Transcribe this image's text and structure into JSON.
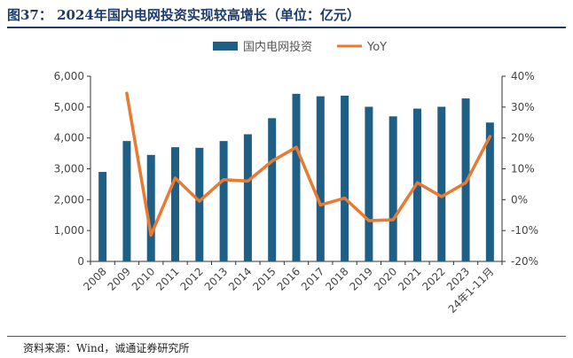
{
  "title": "图37：  2024年国内电网投资实现较高增长（单位：亿元）",
  "source": "资料来源：Wind，诚通证券研究所",
  "colors": {
    "bar": "#1f5f86",
    "line": "#e97a33",
    "title": "#1f3b6b"
  },
  "chart_data": {
    "type": "bar+line",
    "categories": [
      "2008",
      "2009",
      "2010",
      "2011",
      "2012",
      "2013",
      "2014",
      "2015",
      "2016",
      "2017",
      "2018",
      "2019",
      "2020",
      "2021",
      "2022",
      "2023",
      "24年1-11月"
    ],
    "series": [
      {
        "name": "国内电网投资",
        "type": "bar",
        "axis": "left",
        "values": [
          2900,
          3900,
          3450,
          3700,
          3680,
          3900,
          4120,
          4640,
          5430,
          5350,
          5370,
          5010,
          4700,
          4950,
          5010,
          5280,
          4500
        ]
      },
      {
        "name": "YoY",
        "type": "line",
        "axis": "right",
        "values": [
          null,
          34.5,
          -11.5,
          7.0,
          -0.5,
          6.5,
          6.0,
          12.5,
          17.0,
          -1.7,
          0.5,
          -6.8,
          -6.5,
          5.5,
          1.0,
          5.5,
          20.5
        ]
      }
    ],
    "y_left": {
      "min": 0,
      "max": 6000,
      "ticks": [
        "0",
        "1,000",
        "2,000",
        "3,000",
        "4,000",
        "5,000",
        "6,000"
      ]
    },
    "y_right": {
      "min": -20,
      "max": 40,
      "ticks": [
        "-20%",
        "-10%",
        "0%",
        "10%",
        "20%",
        "30%",
        "40%"
      ]
    },
    "legend": {
      "position": "top"
    },
    "grid": false
  }
}
